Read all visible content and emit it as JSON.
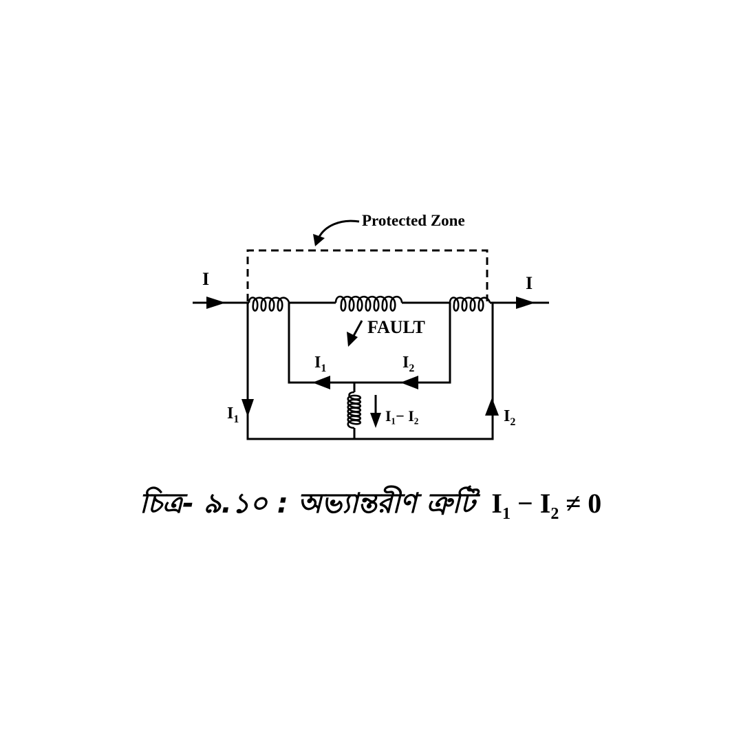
{
  "zone_label": "Protected Zone",
  "fault_label": "FAULT",
  "current_labels": {
    "input": "I",
    "output": "I",
    "i1": "I",
    "i2": "I",
    "sub1": "1",
    "sub2": "2",
    "diff": "I₁− I₂"
  },
  "caption": {
    "text": "চিত্র- ৯.১০ : অভ্যান্তরীণ ত্রুটি",
    "eq_i": "I",
    "eq_sub1": "1",
    "eq_minus": " − ",
    "eq_sub2": "2",
    "eq_rest": " ≠  0"
  }
}
